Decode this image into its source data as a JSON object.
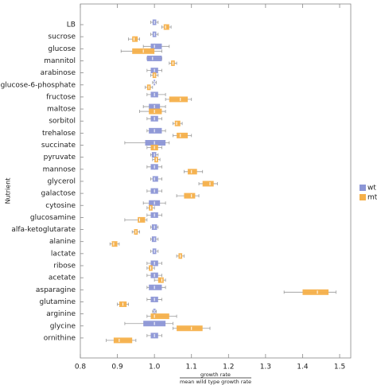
{
  "chart_data": {
    "type": "boxwhisker",
    "ylabel": "Nutrient",
    "xlabel": [
      "growth rate",
      "mean wild type growth rate"
    ],
    "categories": [
      "LB",
      "sucrose",
      "glucose",
      "mannitol",
      "arabinose",
      "glucose-6-phosphate",
      "fructose",
      "maltose",
      "sorbitol",
      "trehalose",
      "succinate",
      "pyruvate",
      "mannose",
      "glycerol",
      "galactose",
      "cytosine",
      "glucosamine",
      "alfa-ketoglutarate",
      "alanine",
      "lactate",
      "ribose",
      "acetate",
      "asparagine",
      "glutamine",
      "arginine",
      "glycine",
      "ornithine"
    ],
    "xlim": [
      0.8,
      1.53
    ],
    "xticks": [
      0.8,
      0.9,
      {
        "value": 1.0,
        "label": "1.0"
      },
      1.1,
      1.2,
      1.3,
      1.4,
      1.5
    ],
    "series": [
      {
        "name": "wt",
        "color": "#8c96d6",
        "values": [
          [
            0.99,
            0.995,
            1.0,
            1.005,
            1.01
          ],
          [
            0.99,
            0.995,
            1.0,
            1.005,
            1.01
          ],
          [
            0.97,
            0.99,
            1.0,
            1.02,
            1.04
          ],
          [
            0.98,
            0.98,
            0.995,
            1.02,
            1.02
          ],
          [
            0.98,
            0.99,
            1.0,
            1.01,
            1.02
          ],
          [
            0.995,
            0.998,
            1.0,
            1.002,
            1.005
          ],
          [
            0.98,
            0.99,
            1.0,
            1.01,
            1.03
          ],
          [
            0.97,
            0.985,
            1.0,
            1.015,
            1.03
          ],
          [
            0.98,
            0.99,
            1.0,
            1.01,
            1.02
          ],
          [
            0.98,
            0.985,
            1.0,
            1.02,
            1.03
          ],
          [
            0.92,
            0.975,
            1.0,
            1.03,
            1.04
          ],
          [
            0.99,
            0.993,
            1.0,
            1.005,
            1.01
          ],
          [
            0.98,
            0.99,
            1.0,
            1.01,
            1.02
          ],
          [
            0.99,
            0.995,
            1.0,
            1.01,
            1.02
          ],
          [
            0.98,
            0.99,
            1.0,
            1.01,
            1.02
          ],
          [
            0.97,
            0.985,
            1.0,
            1.015,
            1.03
          ],
          [
            0.98,
            0.99,
            1.0,
            1.01,
            1.02
          ],
          [
            0.99,
            0.993,
            1.0,
            1.007,
            1.01
          ],
          [
            0.99,
            0.993,
            1.0,
            1.005,
            1.01
          ],
          [
            0.99,
            0.995,
            1.0,
            1.005,
            1.01
          ],
          [
            0.98,
            0.99,
            1.0,
            1.01,
            1.02
          ],
          [
            0.98,
            0.99,
            1.0,
            1.01,
            1.02
          ],
          [
            0.98,
            0.985,
            1.0,
            1.02,
            1.03
          ],
          [
            0.98,
            0.99,
            1.0,
            1.01,
            1.02
          ],
          [
            0.995,
            0.997,
            1.0,
            1.003,
            1.005
          ],
          [
            0.92,
            0.97,
            1.0,
            1.03,
            1.05
          ],
          [
            0.98,
            0.99,
            1.0,
            1.01,
            1.02
          ]
        ]
      },
      {
        "name": "mt",
        "color": "#f5b04a",
        "values": [
          [
            1.02,
            1.025,
            1.03,
            1.04,
            1.045
          ],
          [
            0.93,
            0.94,
            0.945,
            0.955,
            0.96
          ],
          [
            0.91,
            0.94,
            0.97,
            1.0,
            1.02
          ],
          [
            1.04,
            1.045,
            1.05,
            1.055,
            1.06
          ],
          [
            0.99,
            0.995,
            1.0,
            1.005,
            1.01
          ],
          [
            0.975,
            0.98,
            0.985,
            0.99,
            0.995
          ],
          [
            1.03,
            1.04,
            1.07,
            1.09,
            1.1
          ],
          [
            0.96,
            0.985,
            1.0,
            1.02,
            1.03
          ],
          [
            1.05,
            1.055,
            1.06,
            1.07,
            1.075
          ],
          [
            1.05,
            1.06,
            1.07,
            1.09,
            1.1
          ],
          [
            0.98,
            0.99,
            1.0,
            1.01,
            1.02
          ],
          [
            0.995,
            1.0,
            1.005,
            1.01,
            1.015
          ],
          [
            1.08,
            1.09,
            1.1,
            1.115,
            1.13
          ],
          [
            1.12,
            1.13,
            1.15,
            1.16,
            1.17
          ],
          [
            1.06,
            1.08,
            1.1,
            1.11,
            1.12
          ],
          [
            0.98,
            0.985,
            0.99,
            0.995,
            1.0
          ],
          [
            0.92,
            0.955,
            0.96,
            0.975,
            0.98
          ],
          [
            0.94,
            0.945,
            0.95,
            0.955,
            0.96
          ],
          [
            0.88,
            0.885,
            0.89,
            0.9,
            0.905
          ],
          [
            1.06,
            1.065,
            1.07,
            1.075,
            1.08
          ],
          [
            0.98,
            0.985,
            0.99,
            0.995,
            1.0
          ],
          [
            1.0,
            1.01,
            1.02,
            1.025,
            1.03
          ],
          [
            1.35,
            1.4,
            1.44,
            1.47,
            1.49
          ],
          [
            0.9,
            0.905,
            0.915,
            0.925,
            0.93
          ],
          [
            0.98,
            0.99,
            1.0,
            1.04,
            1.06
          ],
          [
            1.05,
            1.06,
            1.1,
            1.13,
            1.15
          ],
          [
            0.87,
            0.89,
            0.905,
            0.94,
            0.95
          ]
        ]
      }
    ]
  }
}
